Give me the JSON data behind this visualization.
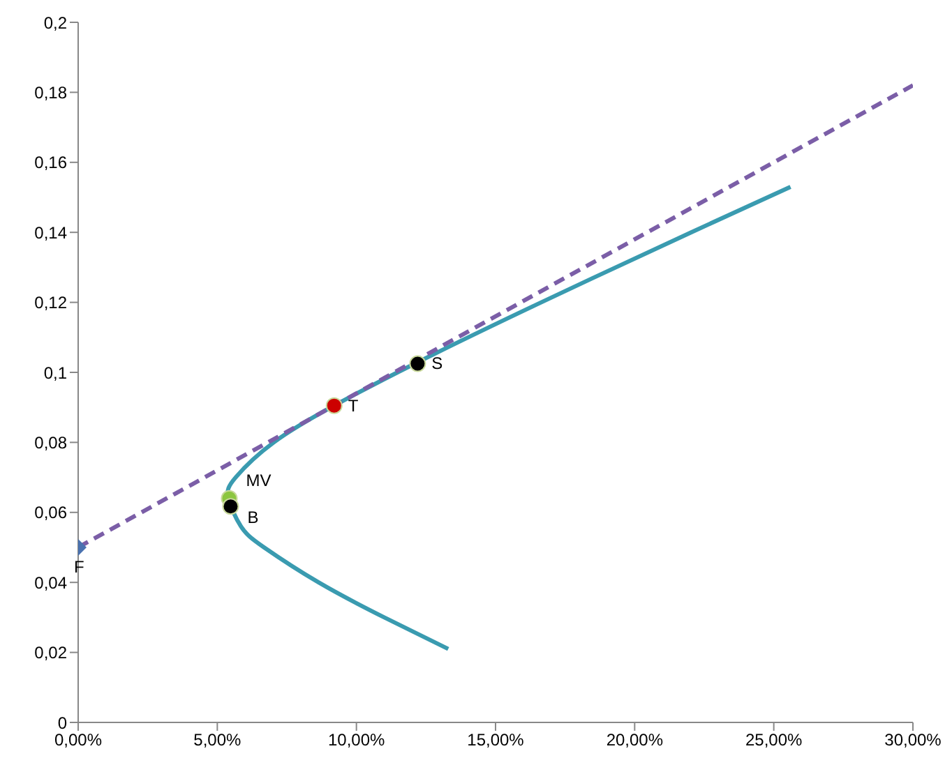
{
  "chart_data": {
    "type": "line",
    "xlim": [
      0,
      0.3
    ],
    "ylim": [
      0,
      0.2
    ],
    "xticks": [
      {
        "value": 0,
        "label": "0,00%"
      },
      {
        "value": 0.05,
        "label": "5,00%"
      },
      {
        "value": 0.1,
        "label": "10,00%"
      },
      {
        "value": 0.15,
        "label": "15,00%"
      },
      {
        "value": 0.2,
        "label": "20,00%"
      },
      {
        "value": 0.25,
        "label": "25,00%"
      },
      {
        "value": 0.3,
        "label": "30,00%"
      }
    ],
    "yticks": [
      0,
      {
        "value": 0.02,
        "label": "0,02"
      },
      {
        "value": 0.04,
        "label": "0,04"
      },
      {
        "value": 0.06,
        "label": "0,06"
      },
      {
        "value": 0.08,
        "label": "0,08"
      },
      {
        "value": 0.1,
        "label": "0,1"
      },
      {
        "value": 0.12,
        "label": "0,12"
      },
      {
        "value": 0.14,
        "label": "0,14"
      },
      {
        "value": 0.16,
        "label": "0,16"
      },
      {
        "value": 0.18,
        "label": "0,18"
      },
      {
        "value": 0.2,
        "label": "0,2"
      }
    ],
    "grid": false,
    "series": [
      {
        "color": "#3a9bb0",
        "marker": "none",
        "line_style": "solid",
        "x": [
          0.133,
          0.11,
          0.0864,
          0.0668,
          0.0585,
          0.054,
          0.0566,
          0.0703,
          0.092,
          0.121,
          0.1664,
          0.2203,
          0.256
        ],
        "values": [
          0.021,
          0.03,
          0.04,
          0.05,
          0.056,
          0.064,
          0.07,
          0.08,
          0.0905,
          0.1025,
          0.12,
          0.14,
          0.153
        ]
      },
      {
        "color": "#7b5ea7",
        "marker": "none",
        "line_style": "dashed",
        "x": [
          0,
          0.3
        ],
        "values": [
          0.05,
          0.182
        ]
      },
      {
        "type": "scatter",
        "name": "F",
        "color": "#4a72b0",
        "marker": "diamond",
        "x": [
          0
        ],
        "values": [
          0.05
        ]
      },
      {
        "type": "scatter",
        "name": "MV",
        "color": "#8cc63f",
        "marker": "circle",
        "x": [
          0.0543
        ],
        "values": [
          0.064
        ]
      },
      {
        "type": "scatter",
        "name": "B",
        "color": "#000000",
        "marker": "circle",
        "x": [
          0.0548
        ],
        "values": [
          0.0617
        ]
      },
      {
        "type": "scatter",
        "name": "T",
        "color": "#cc0000",
        "marker": "circle",
        "x": [
          0.092
        ],
        "values": [
          0.0905
        ]
      },
      {
        "type": "scatter",
        "name": "S",
        "color": "#000000",
        "marker": "circle",
        "x": [
          0.122
        ],
        "values": [
          0.1025
        ]
      }
    ]
  }
}
